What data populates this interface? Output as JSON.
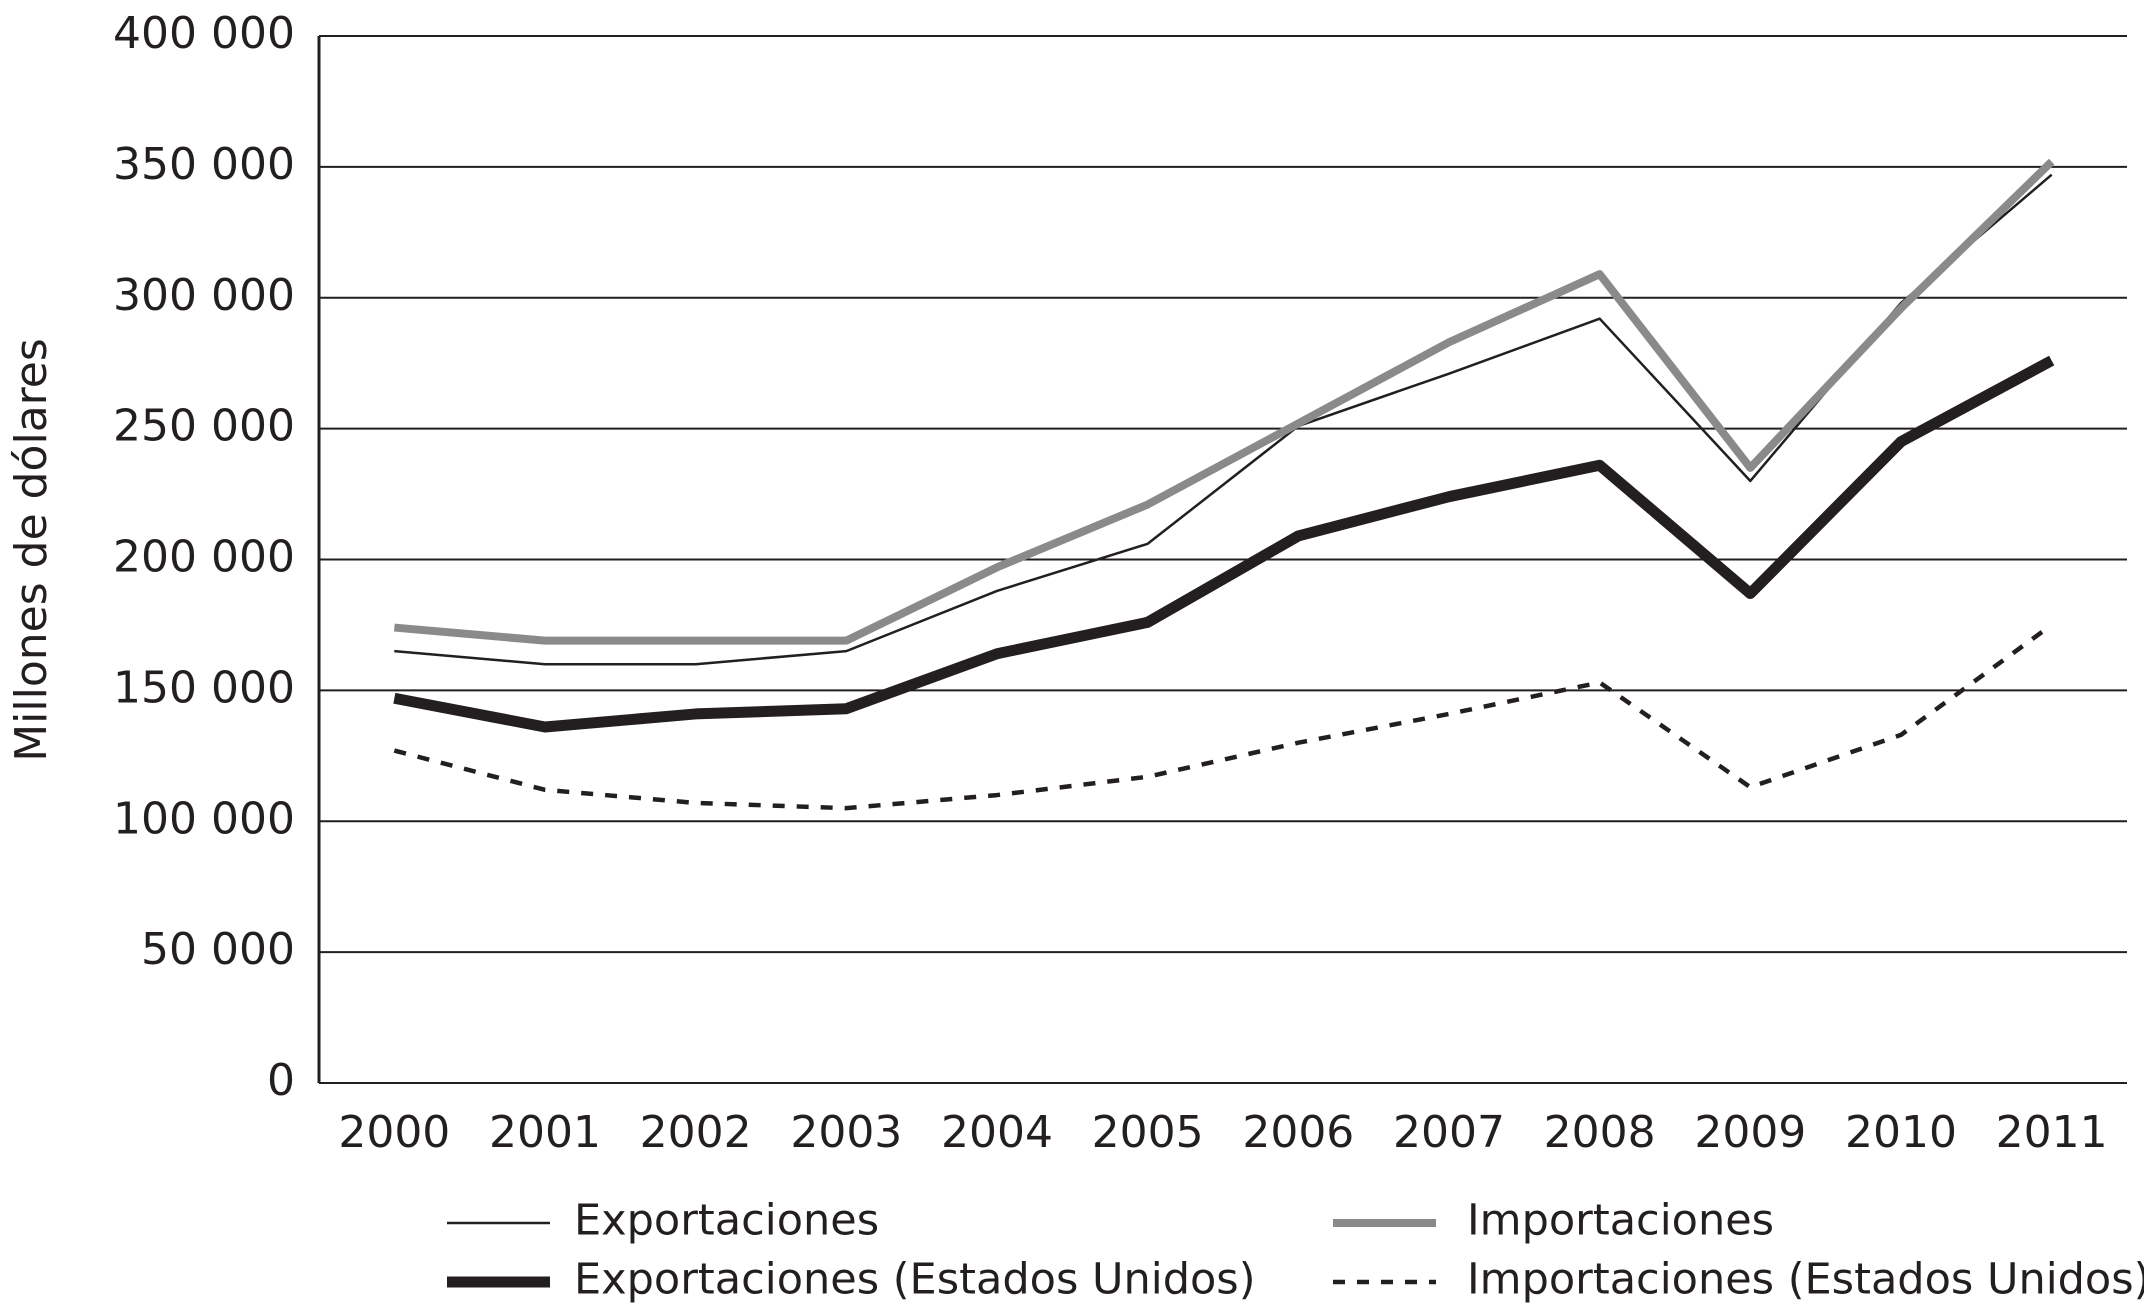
{
  "chart_data": {
    "type": "line",
    "y_label": "Millones de dólares",
    "categories": [
      "2000",
      "2001",
      "2002",
      "2003",
      "2004",
      "2005",
      "2006",
      "2007",
      "2008",
      "2009",
      "2010",
      "2011"
    ],
    "series": [
      {
        "name": "Exportaciones",
        "color": "#231f20",
        "values": [
          165000,
          160000,
          160000,
          165000,
          188000,
          206000,
          251000,
          271000,
          292000,
          230000,
          298000,
          347000
        ]
      },
      {
        "name": "Importaciones",
        "color": "#8a8a8a",
        "values": [
          174000,
          169000,
          169000,
          169000,
          197000,
          221000,
          252000,
          283000,
          309000,
          235000,
          296000,
          352000
        ]
      },
      {
        "name": "Exportaciones (Estados Unidos)",
        "color": "#231f20",
        "values": [
          147000,
          136000,
          141000,
          143000,
          164000,
          176000,
          209000,
          224000,
          236000,
          187000,
          245000,
          276000
        ]
      },
      {
        "name": "Importaciones (Estados Unidos)",
        "color": "#231f20",
        "values": [
          127000,
          112000,
          107000,
          105000,
          110000,
          117000,
          130000,
          141000,
          153000,
          113000,
          133000,
          175000
        ]
      }
    ],
    "ylim": [
      0,
      400000
    ],
    "yticks": [
      0,
      {
        "value": 50000,
        "label": "50 000"
      },
      {
        "value": 100000,
        "label": "100 000"
      },
      {
        "value": 150000,
        "label": "150 000"
      },
      {
        "value": 200000,
        "label": "200 000"
      },
      {
        "value": 250000,
        "label": "250 000"
      },
      {
        "value": 300000,
        "label": "300 000"
      },
      {
        "value": 350000,
        "label": "350 000"
      },
      {
        "value": 400000,
        "label": "400 000"
      }
    ],
    "grid": true
  }
}
